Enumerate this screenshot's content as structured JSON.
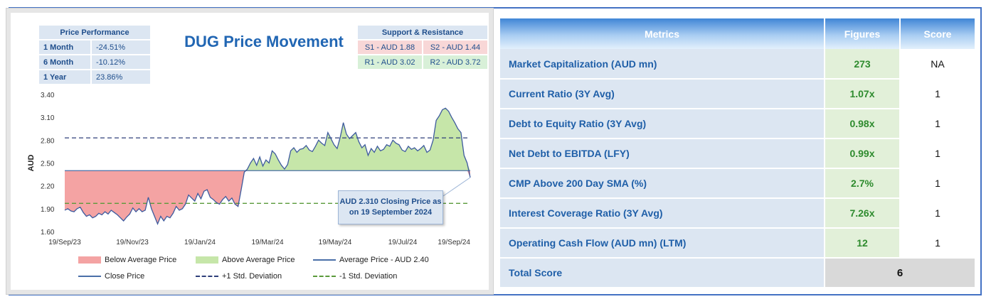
{
  "price_performance": {
    "header": "Price Performance",
    "rows": [
      {
        "label": "1 Month",
        "value": "-24.51%"
      },
      {
        "label": "6 Month",
        "value": "-10.12%"
      },
      {
        "label": "1 Year",
        "value": "23.86%"
      }
    ]
  },
  "support_resistance": {
    "header": "Support & Resistance",
    "s1": "S1 - AUD 1.88",
    "s2": "S2 - AUD 1.44",
    "r1": "R1 - AUD 3.02",
    "r2": "R2 - AUD 3.72"
  },
  "callout": {
    "line1": "AUD 2.310 Closing Price as",
    "line2": "on 19 September 2024"
  },
  "legend": {
    "below": "Below Average Price",
    "above": "Above Average Price",
    "average": "Average Price - AUD 2.40",
    "close": "Close Price",
    "plus_std": "+1 Std. Deviation",
    "minus_std": "-1 Std. Deviation"
  },
  "colors": {
    "below_fill": "#f4a3a3",
    "above_fill": "#c6e6a9",
    "close_line": "#3d5a9e",
    "avg_line": "#4a6fa8",
    "plus_std": "#2e3f7a",
    "minus_std": "#5a9a3a",
    "title": "#2166b3"
  },
  "chart_data": {
    "type": "area",
    "title": "DUG Price Movement",
    "ylabel": "AUD",
    "xlabel": "",
    "ylim": [
      1.6,
      3.4
    ],
    "yticks": [
      "3.40",
      "3.10",
      "2.80",
      "2.50",
      "2.20",
      "1.90",
      "1.60"
    ],
    "ytick_values": [
      3.4,
      3.1,
      2.8,
      2.5,
      2.2,
      1.9,
      1.6
    ],
    "xticks": [
      "19/Sep/23",
      "19/Nov/23",
      "19/Jan/24",
      "19/Mar/24",
      "19/May/24",
      "19/Jul/24",
      "19/Sep/24"
    ],
    "average": 2.4,
    "plus_std": 2.83,
    "minus_std": 1.97,
    "last_close": 2.31,
    "series": [
      {
        "name": "Close Price",
        "values": [
          1.88,
          1.9,
          1.87,
          1.86,
          1.9,
          1.92,
          1.85,
          1.8,
          1.82,
          1.78,
          1.8,
          1.84,
          1.82,
          1.86,
          1.83,
          1.88,
          1.85,
          1.82,
          1.78,
          1.74,
          1.79,
          1.83,
          1.91,
          1.86,
          1.9,
          1.86,
          1.88,
          2.05,
          1.9,
          1.8,
          1.7,
          1.8,
          1.74,
          1.8,
          1.78,
          1.84,
          1.93,
          1.88,
          1.9,
          1.96,
          2.08,
          2.04,
          2.0,
          2.1,
          2.03,
          2.13,
          2.15,
          2.05,
          2.02,
          1.98,
          1.96,
          2.02,
          2.06,
          2.0,
          2.04,
          1.96,
          1.93,
          2.15,
          2.38,
          2.42,
          2.5,
          2.56,
          2.47,
          2.58,
          2.46,
          2.54,
          2.5,
          2.66,
          2.62,
          2.54,
          2.47,
          2.42,
          2.48,
          2.66,
          2.7,
          2.64,
          2.68,
          2.69,
          2.73,
          2.67,
          2.65,
          2.72,
          2.8,
          2.76,
          2.73,
          2.9,
          2.82,
          2.74,
          2.69,
          2.84,
          3.03,
          2.88,
          2.82,
          2.86,
          2.9,
          2.78,
          2.7,
          2.74,
          2.6,
          2.69,
          2.64,
          2.72,
          2.66,
          2.68,
          2.74,
          2.72,
          2.8,
          2.76,
          2.74,
          2.67,
          2.65,
          2.72,
          2.68,
          2.7,
          2.66,
          2.69,
          2.73,
          2.64,
          2.67,
          2.8,
          3.06,
          3.12,
          3.2,
          3.22,
          3.18,
          3.1,
          3.03,
          2.95,
          2.9,
          2.6,
          2.5,
          2.31
        ]
      }
    ]
  },
  "metrics_table": {
    "headers": [
      "Metrics",
      "Figures",
      "Score"
    ],
    "rows": [
      {
        "metric": "Market Capitalization (AUD mn)",
        "figure": "273",
        "score": "NA"
      },
      {
        "metric": "Current Ratio (3Y Avg)",
        "figure": "1.07x",
        "score": "1"
      },
      {
        "metric": "Debt to Equity Ratio (3Y Avg)",
        "figure": "0.98x",
        "score": "1"
      },
      {
        "metric": "Net Debt to EBITDA (LFY)",
        "figure": "0.99x",
        "score": "1"
      },
      {
        "metric": "CMP Above 200 Day SMA (%)",
        "figure": "2.7%",
        "score": "1"
      },
      {
        "metric": "Interest Coverage Ratio (3Y Avg)",
        "figure": "7.26x",
        "score": "1"
      },
      {
        "metric": "Operating Cash Flow (AUD mn) (LTM)",
        "figure": "12",
        "score": "1"
      }
    ],
    "total_label": "Total Score",
    "total_value": "6"
  }
}
